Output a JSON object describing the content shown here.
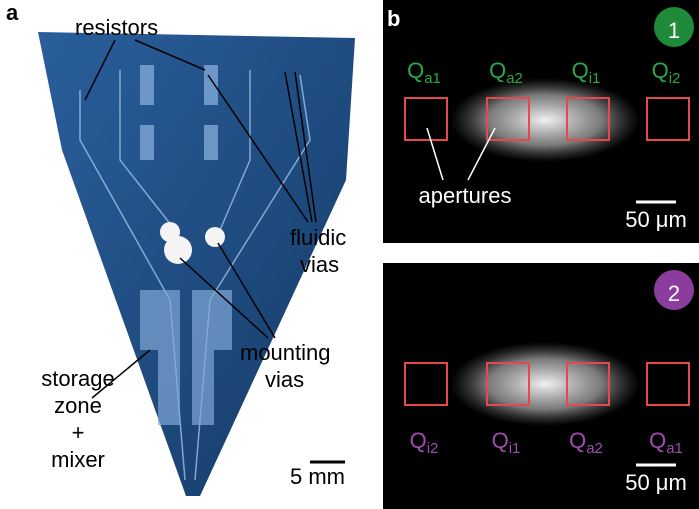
{
  "panel_a": {
    "label": "a",
    "callouts": [
      {
        "lines": [
          "resistors"
        ]
      },
      {
        "lines": [
          "fluidic",
          "vias"
        ]
      },
      {
        "lines": [
          "mounting",
          "vias"
        ]
      },
      {
        "lines": [
          "storage",
          "zone",
          "+",
          "mixer"
        ]
      }
    ],
    "scale_bar": "5 mm"
  },
  "panel_b": {
    "label": "b",
    "frames": [
      {
        "badge": "1",
        "aperture_labels": [
          {
            "q": "Q",
            "sub": "a1"
          },
          {
            "q": "Q",
            "sub": "a2"
          },
          {
            "q": "Q",
            "sub": "i1"
          },
          {
            "q": "Q",
            "sub": "i2"
          }
        ],
        "callout": "apertures",
        "scale_bar": "50 μm"
      },
      {
        "badge": "2",
        "aperture_labels": [
          {
            "q": "Q",
            "sub": "i2"
          },
          {
            "q": "Q",
            "sub": "i1"
          },
          {
            "q": "Q",
            "sub": "a2"
          },
          {
            "q": "Q",
            "sub": "a1"
          }
        ],
        "scale_bar": "50 μm"
      }
    ]
  }
}
